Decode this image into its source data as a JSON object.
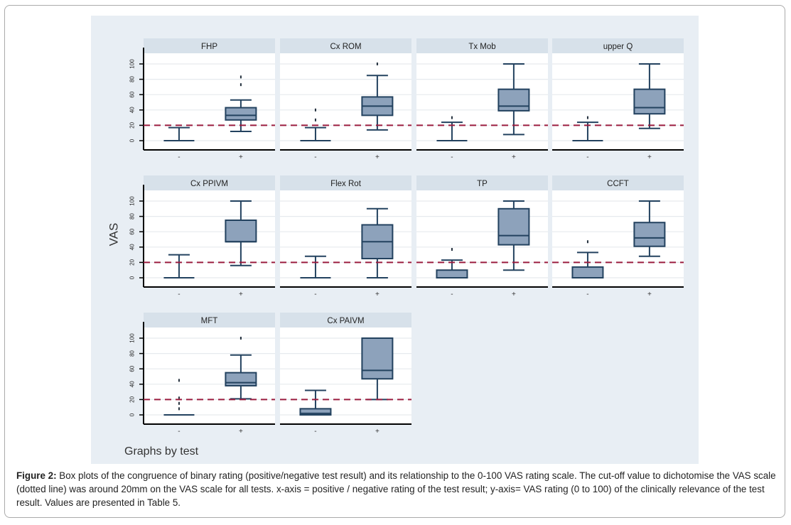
{
  "chart_data": {
    "type": "box",
    "ylabel": "VAS",
    "footer": "Graphs by test",
    "ylim": [
      0,
      100
    ],
    "yticks": [
      0,
      20,
      40,
      60,
      80,
      100
    ],
    "yticklabels": [
      "0",
      "20",
      "40",
      "60",
      "80",
      "100"
    ],
    "categories": [
      "-",
      "+"
    ],
    "cutoff": 20,
    "colors": {
      "box_fill": "#8da2bb",
      "box_stroke": "#23425f",
      "cutoff": "#9b1c3f",
      "strip": "#d7e1ea",
      "plot_bg": "#ffffff",
      "grid": "#e6eaee"
    },
    "panels": [
      {
        "title": "FHP",
        "boxes": [
          {
            "cat": "-",
            "q1": 0,
            "med": 0,
            "q3": 0,
            "lo": 0,
            "hi": 17,
            "out": []
          },
          {
            "cat": "+",
            "q1": 27,
            "med": 33,
            "q3": 43,
            "lo": 12,
            "hi": 53,
            "out": [
              73,
              83
            ]
          }
        ]
      },
      {
        "title": "Cx ROM",
        "boxes": [
          {
            "cat": "-",
            "q1": 0,
            "med": 0,
            "q3": 0,
            "lo": 0,
            "hi": 17,
            "out": [
              27,
              40
            ]
          },
          {
            "cat": "+",
            "q1": 33,
            "med": 45,
            "q3": 57,
            "lo": 14,
            "hi": 85,
            "out": [
              100
            ]
          }
        ]
      },
      {
        "title": "Tx Mob",
        "boxes": [
          {
            "cat": "-",
            "q1": 0,
            "med": 0,
            "q3": 0,
            "lo": 0,
            "hi": 24,
            "out": [
              30
            ]
          },
          {
            "cat": "+",
            "q1": 39,
            "med": 45,
            "q3": 67,
            "lo": 8,
            "hi": 100,
            "out": []
          }
        ]
      },
      {
        "title": "upper Q",
        "boxes": [
          {
            "cat": "-",
            "q1": 0,
            "med": 0,
            "q3": 0,
            "lo": 0,
            "hi": 24,
            "out": [
              30
            ]
          },
          {
            "cat": "+",
            "q1": 35,
            "med": 43,
            "q3": 67,
            "lo": 16,
            "hi": 100,
            "out": []
          }
        ]
      },
      {
        "title": "Cx PPIVM",
        "boxes": [
          {
            "cat": "-",
            "q1": 0,
            "med": 0,
            "q3": 0,
            "lo": 0,
            "hi": 30,
            "out": []
          },
          {
            "cat": "+",
            "q1": 47,
            "med": 47,
            "q3": 75,
            "lo": 16,
            "hi": 100,
            "out": []
          }
        ]
      },
      {
        "title": "Flex Rot",
        "boxes": [
          {
            "cat": "-",
            "q1": 0,
            "med": 0,
            "q3": 0,
            "lo": 0,
            "hi": 28,
            "out": []
          },
          {
            "cat": "+",
            "q1": 25,
            "med": 47,
            "q3": 69,
            "lo": 0,
            "hi": 90,
            "out": []
          }
        ]
      },
      {
        "title": "TP",
        "boxes": [
          {
            "cat": "-",
            "q1": 0,
            "med": 0,
            "q3": 10,
            "lo": 0,
            "hi": 23,
            "out": [
              37
            ]
          },
          {
            "cat": "+",
            "q1": 43,
            "med": 55,
            "q3": 90,
            "lo": 10,
            "hi": 100,
            "out": []
          }
        ]
      },
      {
        "title": "CCFT",
        "boxes": [
          {
            "cat": "-",
            "q1": 0,
            "med": 0,
            "q3": 14,
            "lo": 0,
            "hi": 33,
            "out": [
              47
            ]
          },
          {
            "cat": "+",
            "q1": 41,
            "med": 52,
            "q3": 72,
            "lo": 28,
            "hi": 100,
            "out": []
          }
        ]
      },
      {
        "title": "MFT",
        "boxes": [
          {
            "cat": "-",
            "q1": 0,
            "med": 0,
            "q3": 0,
            "lo": 0,
            "hi": 0,
            "out": [
              8,
              15,
              22,
              45
            ]
          },
          {
            "cat": "+",
            "q1": 38,
            "med": 42,
            "q3": 55,
            "lo": 21,
            "hi": 78,
            "out": [
              100
            ]
          }
        ]
      },
      {
        "title": "Cx PAIVM",
        "boxes": [
          {
            "cat": "-",
            "q1": 0,
            "med": 2,
            "q3": 8,
            "lo": 0,
            "hi": 32,
            "out": []
          },
          {
            "cat": "+",
            "q1": 47,
            "med": 58,
            "q3": 100,
            "lo": 20,
            "hi": 100,
            "out": []
          }
        ]
      }
    ]
  },
  "caption": {
    "label": "Figure 2:",
    "text": " Box plots of the congruence of binary rating (positive/negative test result) and its relationship to the 0-100 VAS rating scale. The cut-off value to dichotomise the VAS scale (dotted line) was around 20mm on the VAS scale for all tests. x-axis = positive / negative rating of the test result; y-axis= VAS rating (0 to 100) of the clinically relevance of the test result. Values are presented in Table 5."
  }
}
